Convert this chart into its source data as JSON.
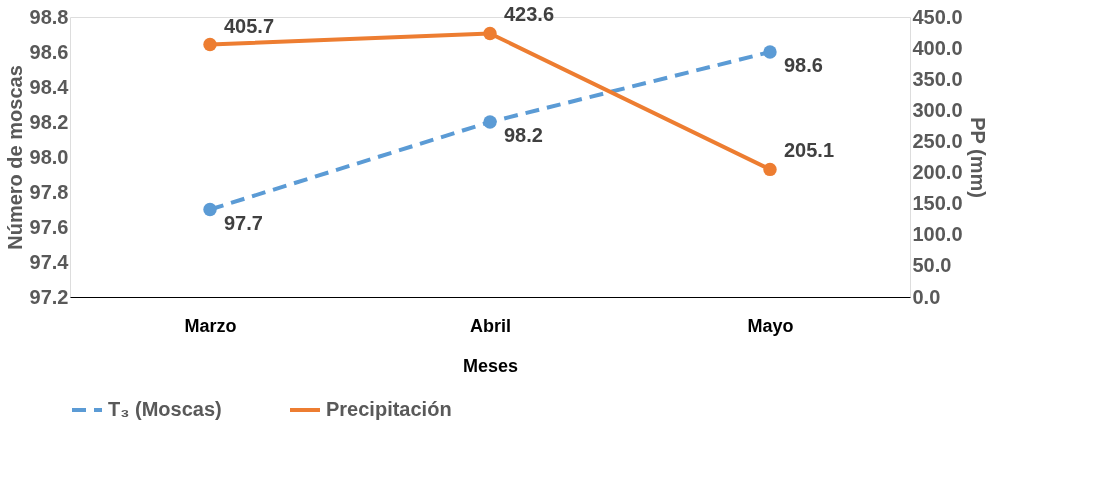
{
  "chart_data": {
    "type": "line",
    "xlabel": "Meses",
    "ylabel": "Número de moscas",
    "y2label": "PP (mm)",
    "categories": [
      "Marzo",
      "Abril",
      "Mayo"
    ],
    "series": [
      {
        "name": "T₃ (Moscas)",
        "color": "#5b9bd5",
        "values": [
          97.7,
          98.2,
          98.6
        ],
        "line_style": "dashed",
        "marker": "circle"
      },
      {
        "name": "Precipitación",
        "color": "#ed7d31",
        "values": [
          405.7,
          423.6,
          205.1
        ],
        "axis": "y2",
        "line_style": "solid",
        "marker": "circle"
      }
    ],
    "ylim": [
      97.2,
      98.8
    ],
    "yticks": [
      97.2,
      97.4,
      97.6,
      97.8,
      {
        "value": 98.0,
        "label": "98.0"
      },
      98.2,
      98.4,
      98.6,
      98.8
    ],
    "y2lim": [
      0,
      450
    ],
    "y2ticks": [
      {
        "value": 0,
        "label": "0.0"
      },
      {
        "value": 50,
        "label": "50.0"
      },
      {
        "value": 100,
        "label": "100.0"
      },
      {
        "value": 150,
        "label": "150.0"
      },
      {
        "value": 200,
        "label": "200.0"
      },
      {
        "value": 250,
        "label": "250.0"
      },
      {
        "value": 300,
        "label": "300.0"
      },
      {
        "value": 350,
        "label": "350.0"
      },
      {
        "value": 400,
        "label": "400.0"
      },
      {
        "value": 450,
        "label": "450.0"
      }
    ],
    "data_labels": true,
    "grid": false,
    "legend": "bottom"
  }
}
